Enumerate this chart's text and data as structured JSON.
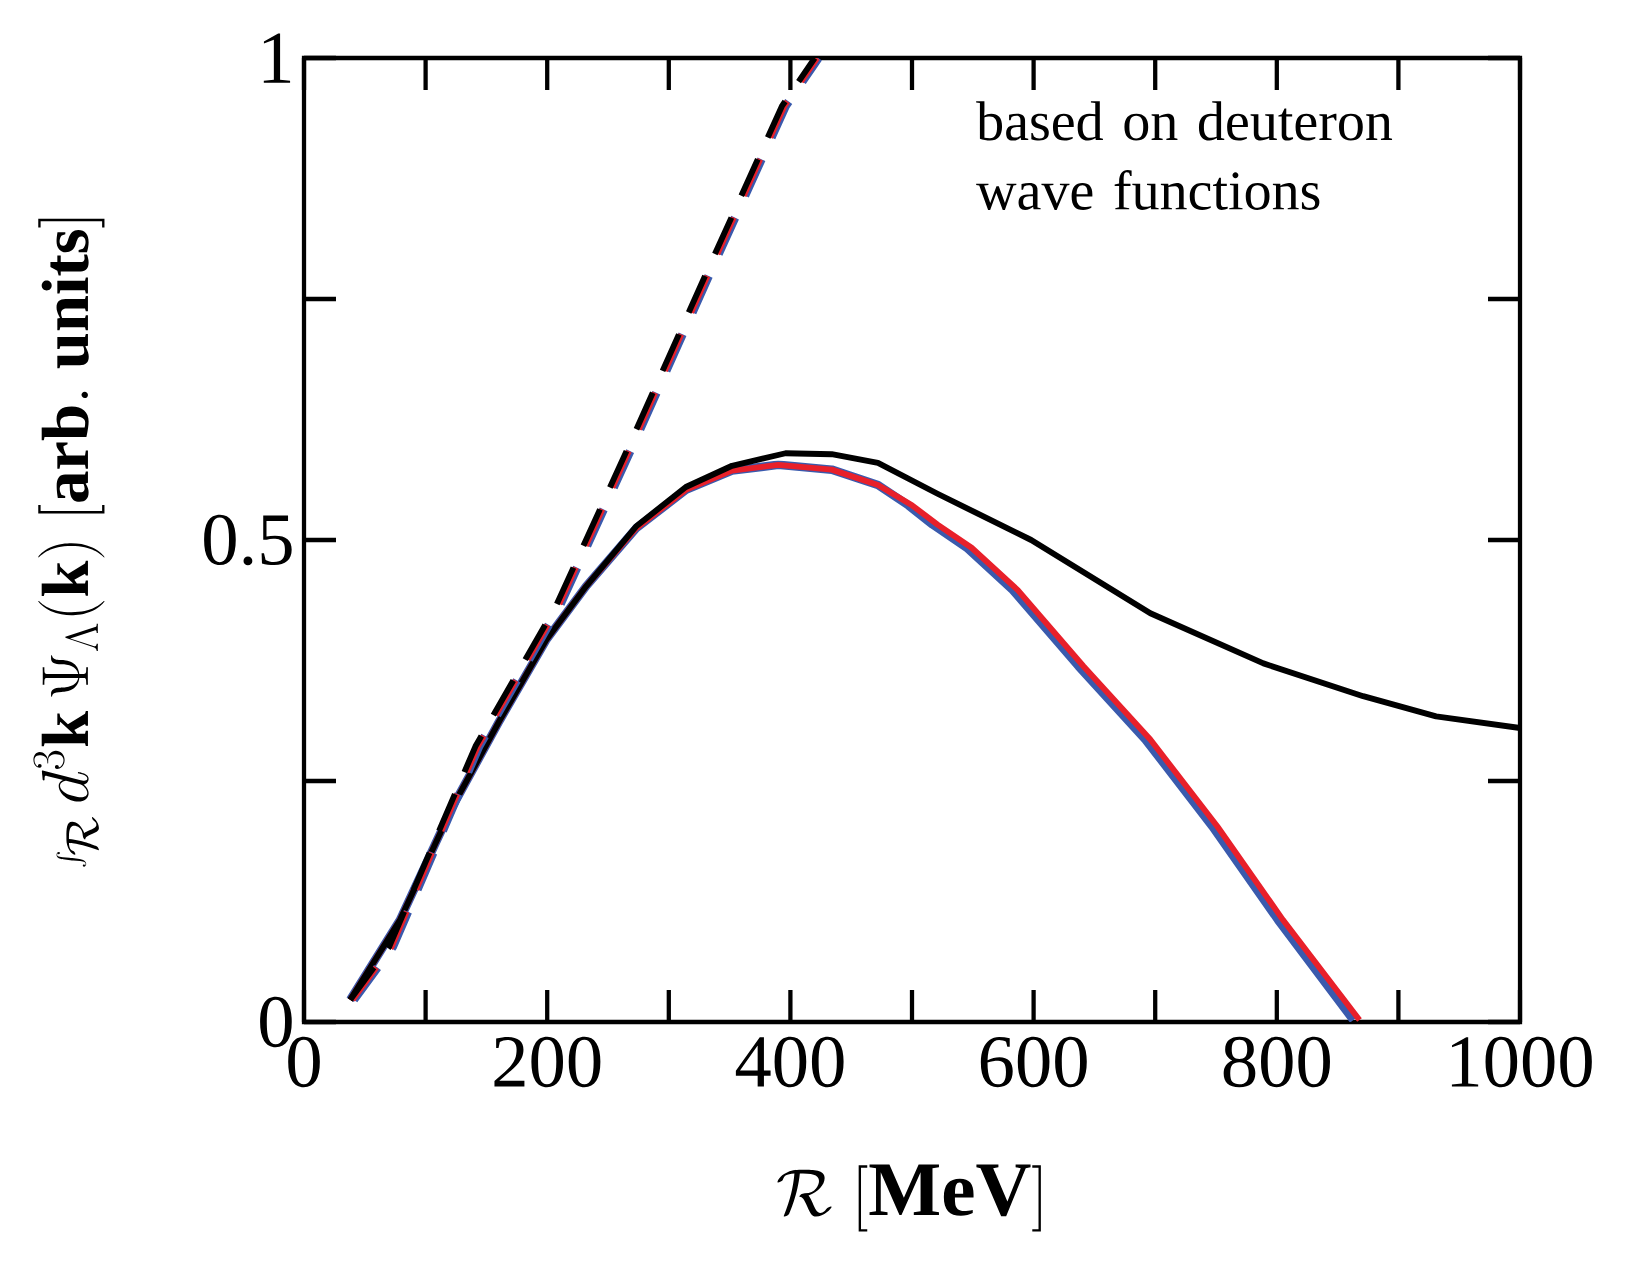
{
  "chart_data": {
    "type": "line",
    "xlabel": "\\mathcal{R}\\ [\\mathbf{MeV}]",
    "ylabel": "\\int_{\\mathcal{R}} d^{3}\\mathbf{k}\\,\\Psi_{\\Lambda}(\\mathbf{k})\\ [\\mathbf{arb.\\ units}]",
    "annotations": [
      "based on deuteron wave functions"
    ],
    "xlim": [
      0,
      1000
    ],
    "ylim": [
      0,
      1
    ],
    "xticks": [
      0,
      {
        "value": 100,
        "label": null
      },
      200,
      {
        "value": 300,
        "label": null
      },
      400,
      {
        "value": 500,
        "label": null
      },
      600,
      {
        "value": 700,
        "label": null
      },
      800,
      {
        "value": 900,
        "label": null
      },
      1000
    ],
    "yticks": [
      0,
      {
        "value": 0.25,
        "label": null
      },
      0.5,
      {
        "value": 0.75,
        "label": null
      },
      1
    ],
    "series": [
      {
        "color": "#3a5aad",
        "line_style": "solid",
        "x": [
          38,
          79,
          122,
          161,
          199,
          232,
          273,
          314,
          352,
          390,
          434,
          472,
          497,
          517,
          545,
          583,
          637,
          692,
          747,
          801,
          863
        ],
        "values": [
          0.023,
          0.106,
          0.223,
          0.313,
          0.396,
          0.452,
          0.512,
          0.552,
          0.572,
          0.578,
          0.573,
          0.557,
          0.536,
          0.516,
          0.492,
          0.448,
          0.369,
          0.293,
          0.203,
          0.106,
          0.002
        ]
      },
      {
        "color": "#e8202a",
        "line_style": "solid",
        "x": [
          38,
          79,
          122,
          161,
          199,
          232,
          273,
          314,
          352,
          390,
          434,
          472,
          500,
          521,
          549,
          587,
          641,
          696,
          751,
          805,
          868
        ],
        "values": [
          0.023,
          0.106,
          0.223,
          0.313,
          0.396,
          0.452,
          0.512,
          0.552,
          0.572,
          0.578,
          0.573,
          0.557,
          0.536,
          0.516,
          0.492,
          0.448,
          0.369,
          0.293,
          0.203,
          0.106,
          0.002
        ]
      },
      {
        "color": "#000000",
        "line_style": "solid",
        "x": [
          38,
          79,
          122,
          161,
          199,
          232,
          273,
          314,
          352,
          396,
          434,
          472,
          521,
          598,
          696,
          789,
          871,
          931,
          1000
        ],
        "values": [
          0.023,
          0.106,
          0.223,
          0.313,
          0.396,
          0.452,
          0.514,
          0.555,
          0.577,
          0.59,
          0.589,
          0.58,
          0.548,
          0.5,
          0.424,
          0.372,
          0.338,
          0.317,
          0.305
        ]
      },
      {
        "color": "#3a5aad",
        "line_style": "dashed",
        "x": [
          41,
          73,
          144,
          210,
          275,
          336,
          396,
          423
        ],
        "values": [
          0.023,
          0.078,
          0.286,
          0.431,
          0.611,
          0.783,
          0.95,
          1.0
        ]
      },
      {
        "color": "#e8202a",
        "line_style": "dashed",
        "x": [
          40,
          72,
          143,
          209,
          274,
          335,
          395,
          422
        ],
        "values": [
          0.023,
          0.078,
          0.286,
          0.431,
          0.611,
          0.783,
          0.95,
          1.0
        ]
      },
      {
        "color": "#000000",
        "line_style": "dashed",
        "x": [
          38,
          70,
          141,
          207,
          272,
          333,
          393,
          420
        ],
        "values": [
          0.023,
          0.078,
          0.286,
          0.431,
          0.611,
          0.783,
          0.95,
          1.0
        ]
      }
    ]
  }
}
